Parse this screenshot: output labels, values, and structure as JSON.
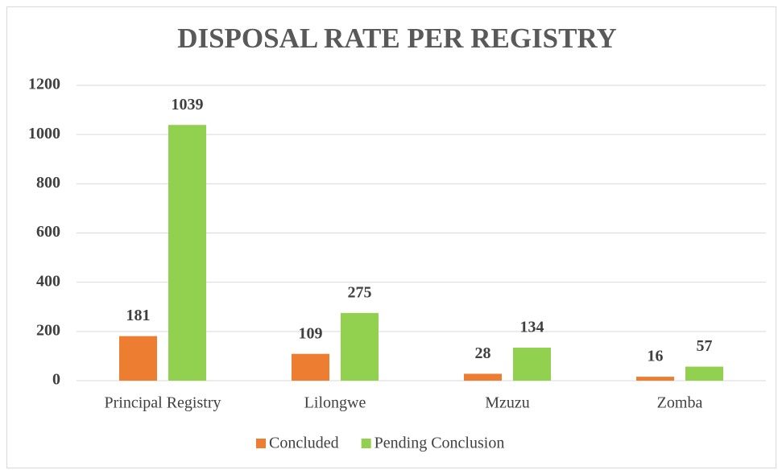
{
  "chart_data": {
    "type": "bar",
    "title": "DISPOSAL RATE PER REGISTRY",
    "categories": [
      "Principal Registry",
      "Lilongwe",
      "Mzuzu",
      "Zomba"
    ],
    "series": [
      {
        "name": "Concluded",
        "color": "#ed7d31",
        "values": [
          181,
          109,
          28,
          16
        ]
      },
      {
        "name": "Pending Conclusion",
        "color": "#92d050",
        "values": [
          1039,
          275,
          134,
          57
        ]
      }
    ],
    "ylim": [
      0,
      1200
    ],
    "yticks": [
      0,
      200,
      400,
      600,
      800,
      1000,
      1200
    ],
    "grid": true,
    "legend": "bottom"
  }
}
